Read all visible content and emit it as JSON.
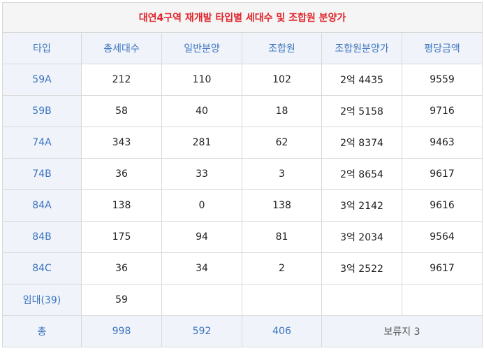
{
  "title": "대연4구역 재개발 타입별 세대수 및 조합원 분양가",
  "headers": [
    "타입",
    "총세대수",
    "일반분양",
    "조합원",
    "조합원분양가",
    "평당금액"
  ],
  "rows": [
    {
      "type": "59A",
      "total": "212",
      "general": "110",
      "member": "102",
      "member_price": "2억 4435",
      "per_pyeong": "9559"
    },
    {
      "type": "59B",
      "total": "58",
      "general": "40",
      "member": "18",
      "member_price": "2억 5158",
      "per_pyeong": "9716"
    },
    {
      "type": "74A",
      "total": "343",
      "general": "281",
      "member": "62",
      "member_price": "2억 8374",
      "per_pyeong": "9463"
    },
    {
      "type": "74B",
      "total": "36",
      "general": "33",
      "member": "3",
      "member_price": "2억 8654",
      "per_pyeong": "9617"
    },
    {
      "type": "84A",
      "total": "138",
      "general": "0",
      "member": "138",
      "member_price": "3억 2142",
      "per_pyeong": "9616"
    },
    {
      "type": "84B",
      "total": "175",
      "general": "94",
      "member": "81",
      "member_price": "3억 2034",
      "per_pyeong": "9564"
    },
    {
      "type": "84C",
      "total": "36",
      "general": "34",
      "member": "2",
      "member_price": "3억 2522",
      "per_pyeong": "9617"
    },
    {
      "type": "임대(39)",
      "total": "59",
      "general": "",
      "member": "",
      "member_price": "",
      "per_pyeong": ""
    }
  ],
  "totals": {
    "label": "총",
    "total": "998",
    "general": "592",
    "member": "406",
    "reserve": "보류지 3"
  },
  "colors": {
    "title": "#e0262d",
    "accent": "#3c73be",
    "header_bg": "#f0f4fa",
    "border": "#d9d9d9"
  }
}
